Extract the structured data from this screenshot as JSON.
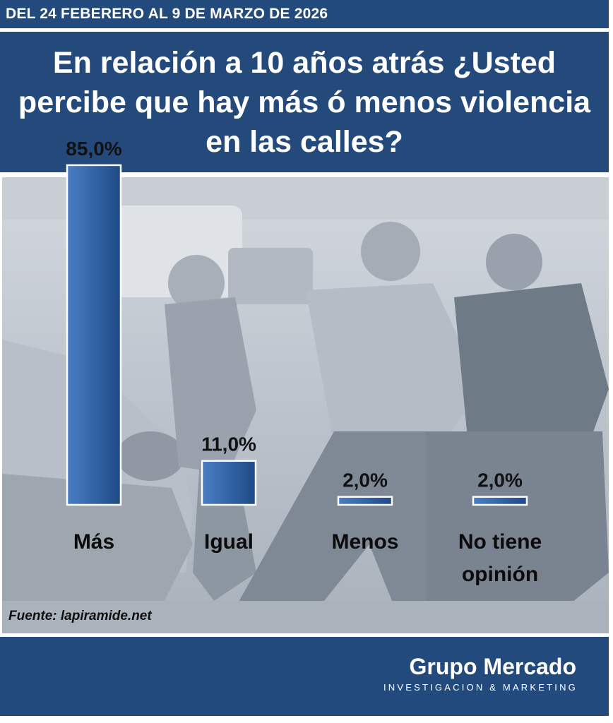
{
  "header": {
    "date_range": "DEL 24 FEBERERO AL 9 DE MARZO DE 2026",
    "question": "En relación a 10 años atrás ¿Usted percibe que hay más ó menos violencia en las calles?"
  },
  "source": "Fuente: lapiramide.net",
  "brand": {
    "name": "Grupo Mercado",
    "tagline": "INVESTIGACION & MARKETING"
  },
  "colors": {
    "banner": "#234a7d",
    "bar_top": "#4a7fc4",
    "bar_bottom": "#1e4a86"
  },
  "chart_data": {
    "type": "bar",
    "title": "",
    "xlabel": "",
    "ylabel": "",
    "ylim": [
      0,
      100
    ],
    "grid": false,
    "categories": [
      [
        "Más"
      ],
      [
        "Igual"
      ],
      [
        "Menos"
      ],
      [
        "No tiene",
        "opinión"
      ]
    ],
    "values": [
      85.0,
      11.0,
      2.0,
      2.0
    ],
    "value_labels": [
      "85,0%",
      "11,0%",
      "2,0%",
      "2,0%"
    ]
  }
}
